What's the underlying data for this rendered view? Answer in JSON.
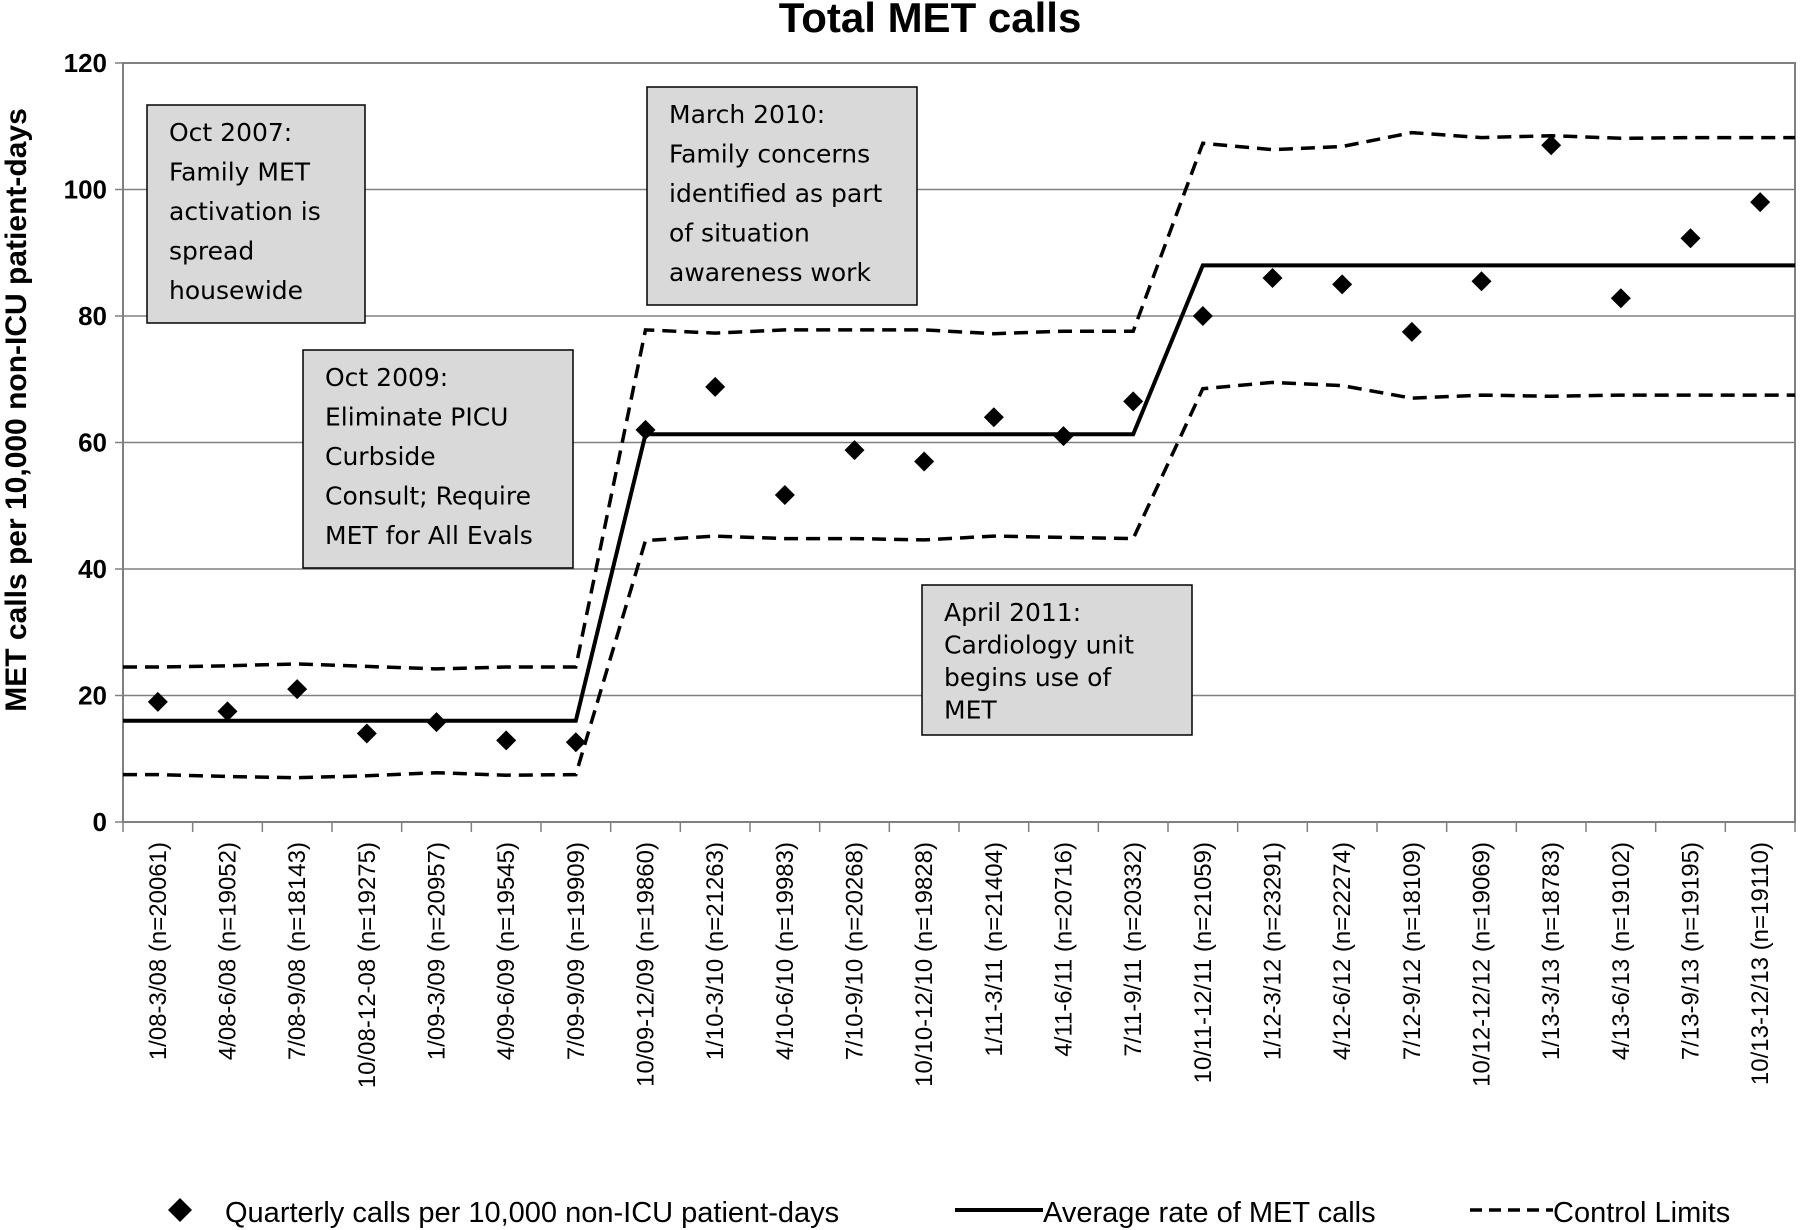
{
  "chart_data": {
    "type": "scatter",
    "title": "Total MET calls",
    "xlabel": "",
    "ylabel": "MET calls per 10,000 non-ICU patient-days",
    "ylim": [
      0,
      120
    ],
    "yticks": [
      0,
      20,
      40,
      60,
      80,
      100,
      120
    ],
    "grid": true,
    "legend_position": "bottom",
    "categories": [
      "1/08-3/08 (n=20061)",
      "4/08-6/08 (n=19052)",
      "7/08-9/08 (n=18143)",
      "10/08-12-08 (n=19275)",
      "1/09-3/09 (n=20957)",
      "4/09-6/09 (n=19545)",
      "7/09-9/09 (n=19909)",
      "10/09-12/09 (n=19860)",
      "1/10-3/10 (n=21263)",
      "4/10-6/10 (n=19983)",
      "7/10-9/10 (n=20268)",
      "10/10-12/10 (n=19828)",
      "1/11-3/11 (n=21404)",
      "4/11-6/11 (n=20716)",
      "7/11-9/11 (n=20332)",
      "10/11-12/11 (n=21059)",
      "1/12-3/12 (n=23291)",
      "4/12-6/12 (n=22274)",
      "7/12-9/12 (n=18109)",
      "10/12-12/12 (n=19069)",
      "1/13-3/13 (n=18783)",
      "4/13-6/13 (n=19102)",
      "7/13-9/13 (n=19195)",
      "10/13-12/13 (n=19110)"
    ],
    "series": [
      {
        "name": "Quarterly calls per 10,000 non-ICU patient-days",
        "style": "diamond-markers",
        "values": [
          19,
          17.5,
          21,
          14,
          15.8,
          12.9,
          12.6,
          62,
          68.8,
          51.7,
          58.8,
          57,
          64,
          61,
          66.5,
          80,
          86,
          85,
          77.5,
          85.5,
          107,
          82.8,
          92.3,
          98
        ]
      },
      {
        "name": "Average rate of MET calls",
        "style": "solid-line",
        "values": [
          16,
          16,
          16,
          16,
          16,
          16,
          16,
          61.3,
          61.3,
          61.3,
          61.3,
          61.3,
          61.3,
          61.3,
          61.3,
          88,
          88,
          88,
          88,
          88,
          88,
          88,
          88,
          88
        ]
      },
      {
        "name": "Control Limits",
        "style": "dashed-line",
        "legend": true,
        "values": [
          24.5,
          24.7,
          25,
          24.6,
          24.2,
          24.5,
          24.5,
          77.8,
          77.3,
          77.8,
          77.8,
          77.8,
          77.2,
          77.6,
          77.6,
          107.3,
          106.3,
          106.8,
          109,
          108.2,
          108.5,
          108.1,
          108.2,
          108.2
        ]
      },
      {
        "name": "Lower control limit",
        "style": "dashed-line",
        "legend": false,
        "values": [
          7.5,
          7.2,
          7,
          7.3,
          7.8,
          7.4,
          7.5,
          44.5,
          45.2,
          44.8,
          44.8,
          44.6,
          45.2,
          45,
          44.8,
          68.5,
          69.5,
          69,
          67,
          67.5,
          67.3,
          67.5,
          67.5,
          67.5
        ]
      }
    ],
    "annotations": [
      {
        "lines": [
          "Oct 2007:",
          "Family MET",
          "activation is",
          "spread",
          "housewide"
        ]
      },
      {
        "lines": [
          "March 2010:",
          "Family concerns",
          "identified as part",
          "of situation",
          "awareness work"
        ]
      },
      {
        "lines": [
          "Oct 2009:",
          "Eliminate PICU",
          "Curbside",
          "Consult; Require",
          "MET for All Evals"
        ]
      },
      {
        "lines": [
          "April 2011:",
          "Cardiology unit",
          "begins use of",
          "MET"
        ]
      }
    ],
    "legend": [
      "Quarterly calls per 10,000 non-ICU patient-days",
      "Average rate of MET calls",
      "Control Limits"
    ]
  }
}
